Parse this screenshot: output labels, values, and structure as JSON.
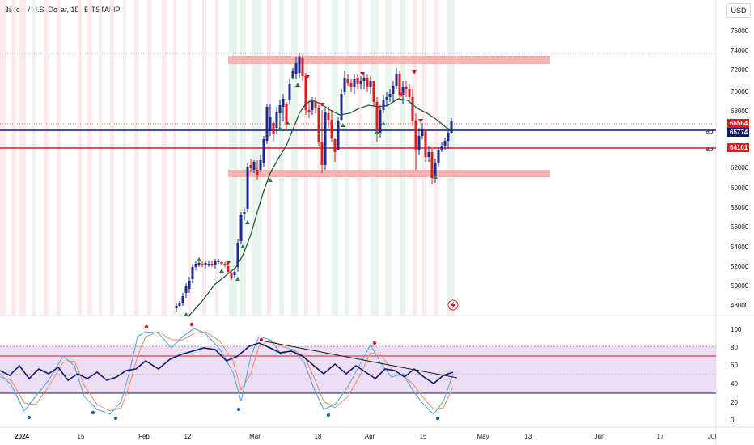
{
  "header": {
    "title": "Bitcoin / U.S. Dollar, 1D, BITSTAMP",
    "currency_button": "USD"
  },
  "price_axis": {
    "ticks": [
      "76000",
      "74000",
      "72000",
      "70000",
      "68000",
      "62000",
      "60000",
      "58000",
      "56000",
      "54000",
      "52000",
      "50000",
      "48000"
    ],
    "last_price_label": "66564",
    "aoi_labels": [
      {
        "text": "aoi",
        "price": "65774",
        "color": "#0d1a6b"
      },
      {
        "text": "aoi",
        "price": "64101",
        "color": "#e01b1b"
      }
    ]
  },
  "oscillator_axis": {
    "ticks": [
      "100",
      "80",
      "60",
      "40",
      "20",
      "0"
    ]
  },
  "time_axis": {
    "labels": [
      "2024",
      "15",
      "Feb",
      "12",
      "Mar",
      "18",
      "Apr",
      "15",
      "May",
      "13",
      "Jun",
      "17",
      "Jul"
    ]
  },
  "colors": {
    "up_candle": "#1c2b8f",
    "down_candle": "#e01b1b",
    "zone_fill": "#f7a8a8",
    "ma_line": "#1e5a3a",
    "osc_band": "#e8d6f0",
    "osc_main": "#0d1a6b",
    "osc_fast": "#5aa7dc",
    "osc_slow": "#f08a5d"
  },
  "replay_icon": "lightning-icon"
}
